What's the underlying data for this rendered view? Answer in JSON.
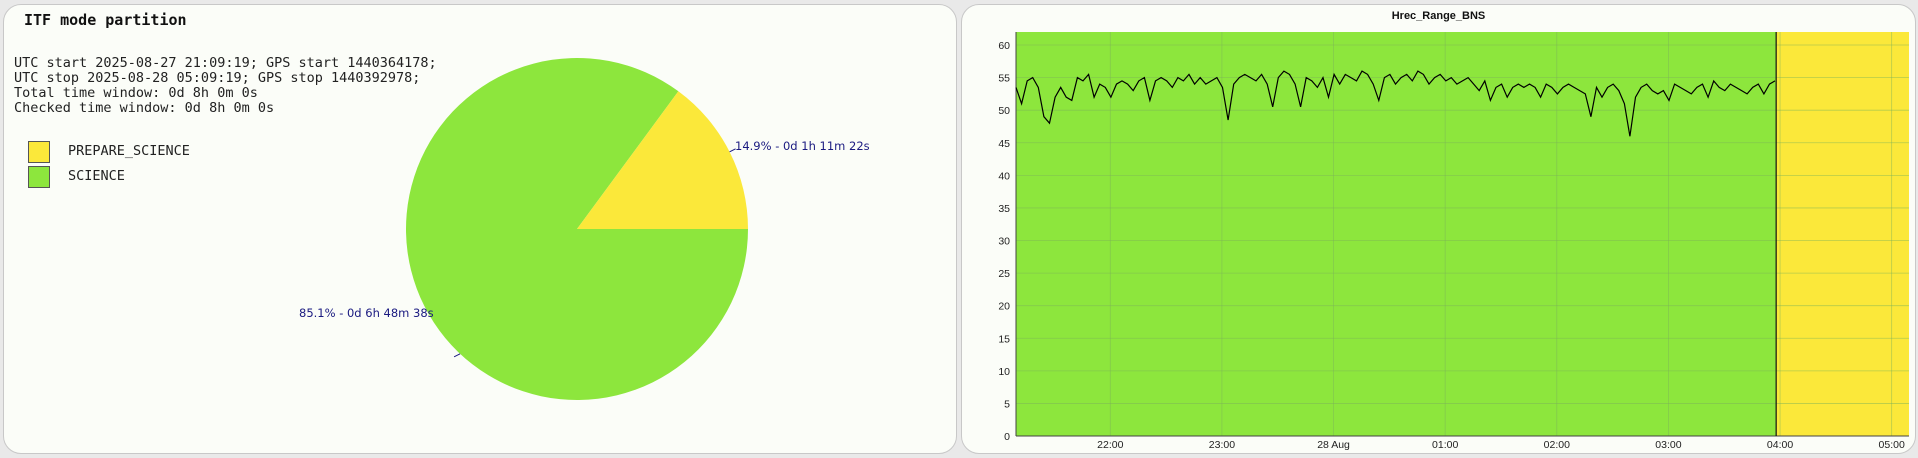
{
  "left": {
    "title": "ITF mode partition",
    "info": [
      "UTC start 2025-08-27 21:09:19; GPS start 1440364178;",
      "UTC stop 2025-08-28 05:09:19; GPS stop 1440392978;",
      "Total time window: 0d 8h 0m 0s",
      "Checked time window: 0d 8h 0m 0s"
    ],
    "legend": [
      {
        "label": "PREPARE_SCIENCE",
        "color": "#fbe83a"
      },
      {
        "label": "SCIENCE",
        "color": "#8de63d"
      }
    ],
    "slice_labels": {
      "prepare": "14.9% - 0d 1h 11m 22s",
      "science": "85.1% - 0d 6h 48m 38s"
    }
  },
  "right": {
    "title": "Hrec_Range_BNS",
    "x_ticks": [
      "22:00",
      "23:00",
      "28 Aug",
      "01:00",
      "02:00",
      "03:00",
      "04:00",
      "05:00"
    ],
    "y_ticks": [
      "0",
      "5",
      "10",
      "15",
      "20",
      "25",
      "30",
      "35",
      "40",
      "45",
      "50",
      "55",
      "60"
    ]
  },
  "chart_data": [
    {
      "type": "pie",
      "title": "ITF mode partition",
      "slices": [
        {
          "name": "PREPARE_SCIENCE",
          "value": 14.9,
          "label": "14.9% - 0d 1h 11m 22s",
          "color": "#fbe83a"
        },
        {
          "name": "SCIENCE",
          "value": 85.1,
          "label": "85.1% - 0d 6h 48m 38s",
          "color": "#8de63d"
        }
      ]
    },
    {
      "type": "line",
      "title": "Hrec_Range_BNS",
      "x_unit": "hours after 2025-08-27 21:09:19 UTC",
      "xlim": [
        0,
        8
      ],
      "ylim": [
        0,
        62
      ],
      "grid": true,
      "background_bands": [
        {
          "mode": "SCIENCE",
          "from": 0,
          "to": 6.81,
          "color": "#8de63d"
        },
        {
          "mode": "PREPARE_SCIENCE",
          "from": 6.81,
          "to": 8,
          "color": "#fbe83a"
        }
      ],
      "series": [
        {
          "color": "#000000",
          "x": [
            0,
            0.05,
            0.1,
            0.15,
            0.2,
            0.25,
            0.3,
            0.35,
            0.4,
            0.45,
            0.5,
            0.55,
            0.6,
            0.65,
            0.7,
            0.75,
            0.8,
            0.85,
            0.9,
            0.95,
            1.0,
            1.05,
            1.1,
            1.15,
            1.2,
            1.25,
            1.3,
            1.35,
            1.4,
            1.45,
            1.5,
            1.55,
            1.6,
            1.65,
            1.7,
            1.75,
            1.8,
            1.85,
            1.9,
            1.95,
            2.0,
            2.05,
            2.1,
            2.15,
            2.2,
            2.25,
            2.3,
            2.35,
            2.4,
            2.45,
            2.5,
            2.55,
            2.6,
            2.65,
            2.7,
            2.75,
            2.8,
            2.85,
            2.9,
            2.95,
            3.0,
            3.05,
            3.1,
            3.15,
            3.2,
            3.25,
            3.3,
            3.35,
            3.4,
            3.45,
            3.5,
            3.55,
            3.6,
            3.65,
            3.7,
            3.75,
            3.8,
            3.85,
            3.9,
            3.95,
            4.0,
            4.05,
            4.1,
            4.15,
            4.2,
            4.25,
            4.3,
            4.35,
            4.4,
            4.45,
            4.5,
            4.55,
            4.6,
            4.65,
            4.7,
            4.75,
            4.8,
            4.85,
            4.9,
            4.95,
            5.0,
            5.05,
            5.1,
            5.15,
            5.2,
            5.25,
            5.3,
            5.35,
            5.4,
            5.45,
            5.5,
            5.55,
            5.6,
            5.65,
            5.7,
            5.75,
            5.8,
            5.85,
            5.9,
            5.95,
            6.0,
            6.05,
            6.1,
            6.15,
            6.2,
            6.25,
            6.3,
            6.35,
            6.4,
            6.45,
            6.5,
            6.55,
            6.6,
            6.65,
            6.7,
            6.75,
            6.8
          ],
          "y": [
            53.5,
            51,
            54.5,
            55,
            53.5,
            49,
            48,
            52,
            53.5,
            52,
            51.5,
            55,
            54.5,
            55.5,
            52,
            54,
            53.5,
            52,
            54,
            54.5,
            54,
            53,
            54.5,
            55,
            51.5,
            54.5,
            55,
            54.5,
            53.5,
            55,
            54.5,
            55.5,
            54,
            55,
            54,
            54.5,
            55,
            53.5,
            48.5,
            54,
            55,
            55.5,
            55,
            54.5,
            55.5,
            54,
            50.5,
            55,
            56,
            55.5,
            54,
            50.5,
            55,
            54.5,
            53.5,
            55,
            52,
            55.5,
            54,
            55.5,
            55,
            54.5,
            56,
            55.5,
            54,
            51.5,
            55,
            55.5,
            54,
            55,
            55.5,
            54.5,
            56,
            55.5,
            54,
            55,
            55.5,
            54.5,
            55,
            54,
            54.5,
            55,
            54,
            53,
            54.5,
            51.5,
            53.5,
            54,
            52,
            53.5,
            54,
            53.5,
            54,
            53.5,
            52,
            54,
            53.5,
            52.5,
            53.5,
            54,
            53.5,
            53,
            52.5,
            49,
            53.5,
            52,
            53.5,
            54,
            53,
            51,
            46,
            52,
            53.5,
            54,
            53,
            52.5,
            53,
            51.5,
            54,
            53.5,
            53,
            52.5,
            53.5,
            54,
            52,
            54.5,
            53.5,
            53,
            54,
            53.5,
            53,
            52.5,
            53.5,
            54,
            52.5,
            54,
            54.5
          ]
        }
      ]
    }
  ]
}
